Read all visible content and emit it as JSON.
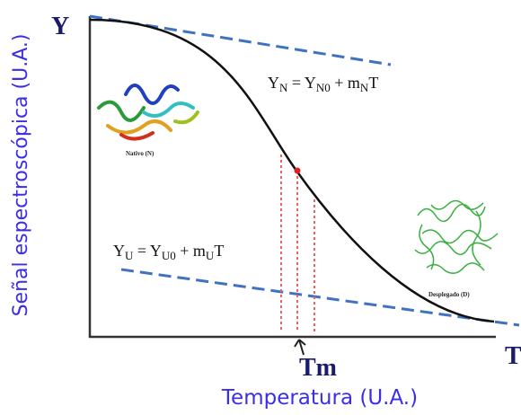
{
  "axes": {
    "y_symbol": "Y",
    "x_symbol": "T",
    "y_label": "Señal espectroscópica (U.A.)",
    "x_label": "Temperatura (U.A.)",
    "midpoint": "Tm"
  },
  "equations": [
    {
      "segments": [
        {
          "text": "Y"
        },
        {
          "text": "N",
          "sub": true
        },
        {
          "text": " = Y"
        },
        {
          "text": "N0",
          "sub": true
        },
        {
          "text": " + m"
        },
        {
          "text": "N",
          "sub": true
        },
        {
          "text": "T"
        }
      ]
    },
    {
      "segments": [
        {
          "text": "Y"
        },
        {
          "text": "U",
          "sub": true
        },
        {
          "text": " = Y"
        },
        {
          "text": "U0",
          "sub": true
        },
        {
          "text": " + m"
        },
        {
          "text": "U",
          "sub": true
        },
        {
          "text": "T"
        }
      ]
    }
  ],
  "states": {
    "native": "Nativo (N)",
    "unfolded": "Desplegado (D)"
  }
}
